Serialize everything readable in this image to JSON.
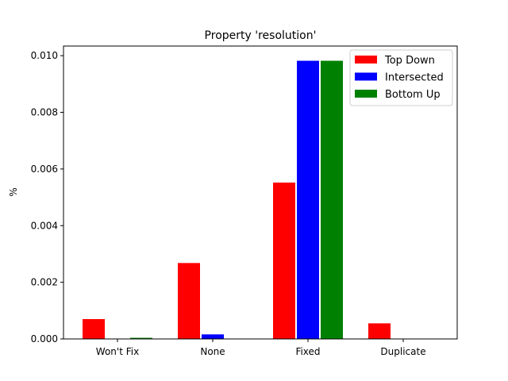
{
  "chart_data": {
    "type": "bar",
    "title": "Property 'resolution'",
    "xlabel": "",
    "ylabel": "%",
    "categories": [
      "Won't Fix",
      "None",
      "Fixed",
      "Duplicate"
    ],
    "series": [
      {
        "name": "Top Down",
        "color": "#ff0000",
        "values": [
          0.0007,
          0.00268,
          0.00552,
          0.00055
        ]
      },
      {
        "name": "Intersected",
        "color": "#0000ff",
        "values": [
          0.0,
          0.00016,
          0.00982,
          0.0
        ]
      },
      {
        "name": "Bottom Up",
        "color": "#008000",
        "values": [
          4e-05,
          0.0,
          0.00982,
          0.0
        ]
      }
    ],
    "ylim": [
      0,
      0.01034
    ],
    "yticks": [
      "0.000",
      "0.002",
      "0.004",
      "0.006",
      "0.008",
      "0.010"
    ],
    "ytick_values": [
      0,
      0.002,
      0.004,
      0.006,
      0.008,
      0.01
    ],
    "legend_position": "top-right",
    "grid": false
  }
}
